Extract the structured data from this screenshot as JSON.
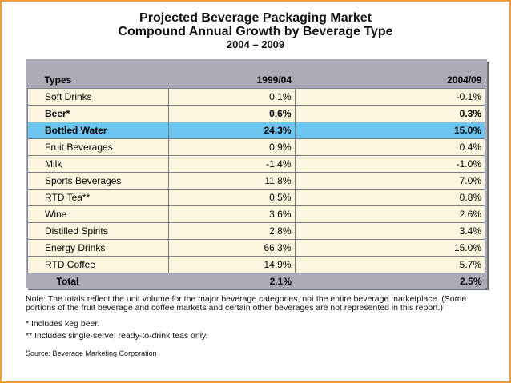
{
  "header": {
    "title_line1": "Projected Beverage Packaging Market",
    "title_line2": "Compound Annual Growth by Beverage Type",
    "subtitle": "2004 – 2009"
  },
  "chart_data": {
    "type": "table",
    "columns": [
      "Types",
      "1999/04",
      "2004/09"
    ],
    "rows": [
      {
        "type": "Soft Drinks",
        "v1999_04": "0.1%",
        "v2004_09": "-0.1%"
      },
      {
        "type": "Beer*",
        "v1999_04": "0.6%",
        "v2004_09": "0.3%"
      },
      {
        "type": "Bottled Water",
        "v1999_04": "24.3%",
        "v2004_09": "15.0%"
      },
      {
        "type": "Fruit Beverages",
        "v1999_04": "0.9%",
        "v2004_09": "0.4%"
      },
      {
        "type": "Milk",
        "v1999_04": "-1.4%",
        "v2004_09": "-1.0%"
      },
      {
        "type": "Sports Beverages",
        "v1999_04": "11.8%",
        "v2004_09": "7.0%"
      },
      {
        "type": "RTD Tea**",
        "v1999_04": "0.5%",
        "v2004_09": "0.8%"
      },
      {
        "type": "Wine",
        "v1999_04": "3.6%",
        "v2004_09": "2.6%"
      },
      {
        "type": "Distilled Spirits",
        "v1999_04": "2.8%",
        "v2004_09": "3.4%"
      },
      {
        "type": "Energy Drinks",
        "v1999_04": "66.3%",
        "v2004_09": "15.0%"
      },
      {
        "type": "RTD Coffee",
        "v1999_04": "14.9%",
        "v2004_09": "5.7%"
      }
    ],
    "total": {
      "type": "Total",
      "v1999_04": "2.1%",
      "v2004_09": "2.5%"
    },
    "highlight_row": "Bottled Water",
    "highlight_color": "#6ec6f0"
  },
  "notes": {
    "main": "Note: The totals reflect the unit volume for the major beverage categories, not the entire beverage marketplace.  (Some portions of the fruit beverage and coffee markets and certain other beverages are not represented in this report.)",
    "footnote1": "* Includes keg beer.",
    "footnote2": "** Includes single-serve, ready-to-drink teas only.",
    "source": "Source: Beverage Marketing Corporation"
  },
  "colors": {
    "frame": "#f39a3c",
    "row_bg": "#fbf6dd",
    "header_bg": "#a9abb6"
  }
}
